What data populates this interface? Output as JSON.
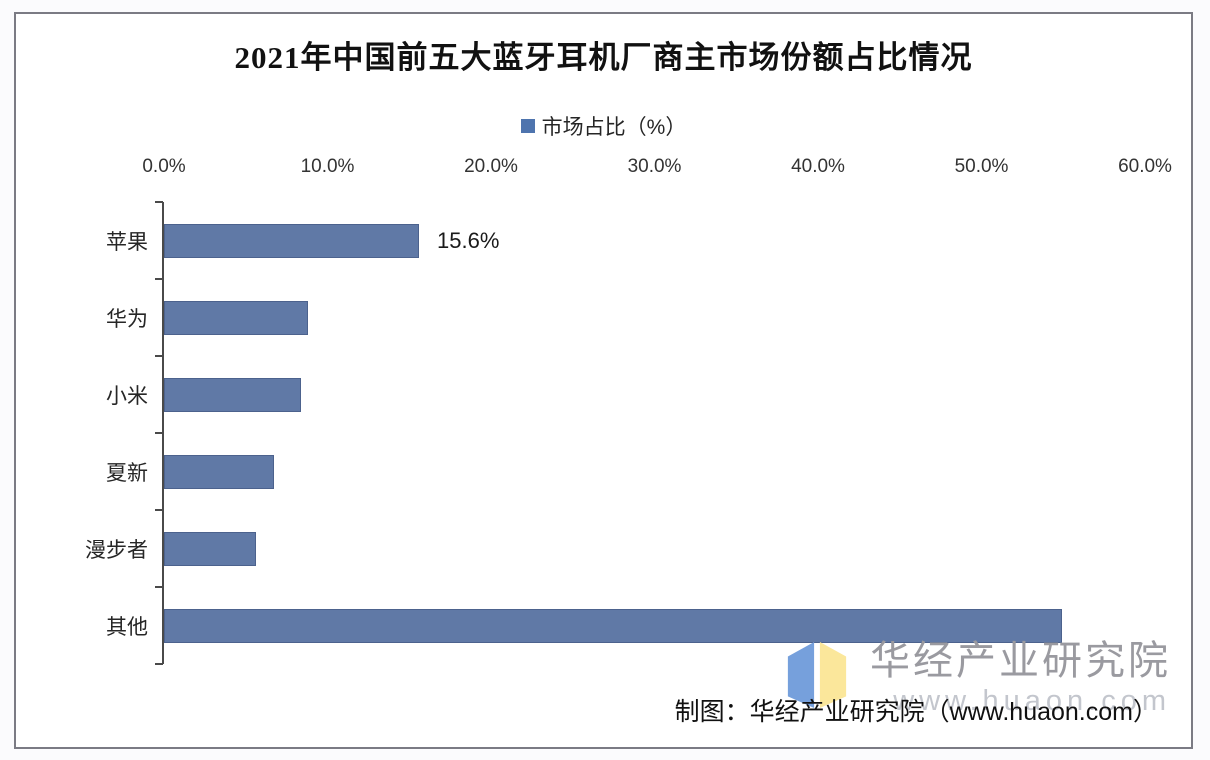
{
  "chart_data": {
    "type": "bar",
    "orientation": "horizontal",
    "title": "2021年中国前五大蓝牙耳机厂商主市场份额占比情况",
    "legend_label": "市场占比（%）",
    "legend_position": "top",
    "categories": [
      "苹果",
      "华为",
      "小米",
      "夏新",
      "漫步者",
      "其他"
    ],
    "values": [
      15.6,
      8.8,
      8.4,
      6.7,
      5.6,
      54.9
    ],
    "data_labels": [
      "15.6%",
      "",
      "",
      "",
      "",
      ""
    ],
    "xlim": [
      0,
      60
    ],
    "x_ticks": [
      "0.0%",
      "10.0%",
      "20.0%",
      "30.0%",
      "40.0%",
      "50.0%",
      "60.0%"
    ],
    "grid": false,
    "bar_color": "#6079A6",
    "legend_swatch_color": "#4E74AE"
  },
  "footer": {
    "credit": "制图：华经产业研究院（www.huaon.com）"
  },
  "watermark": {
    "name": "华经产业研究院",
    "url": "www.huaon.com",
    "logo_blue": "#76A0DC",
    "logo_yellow": "#FBE79B"
  }
}
